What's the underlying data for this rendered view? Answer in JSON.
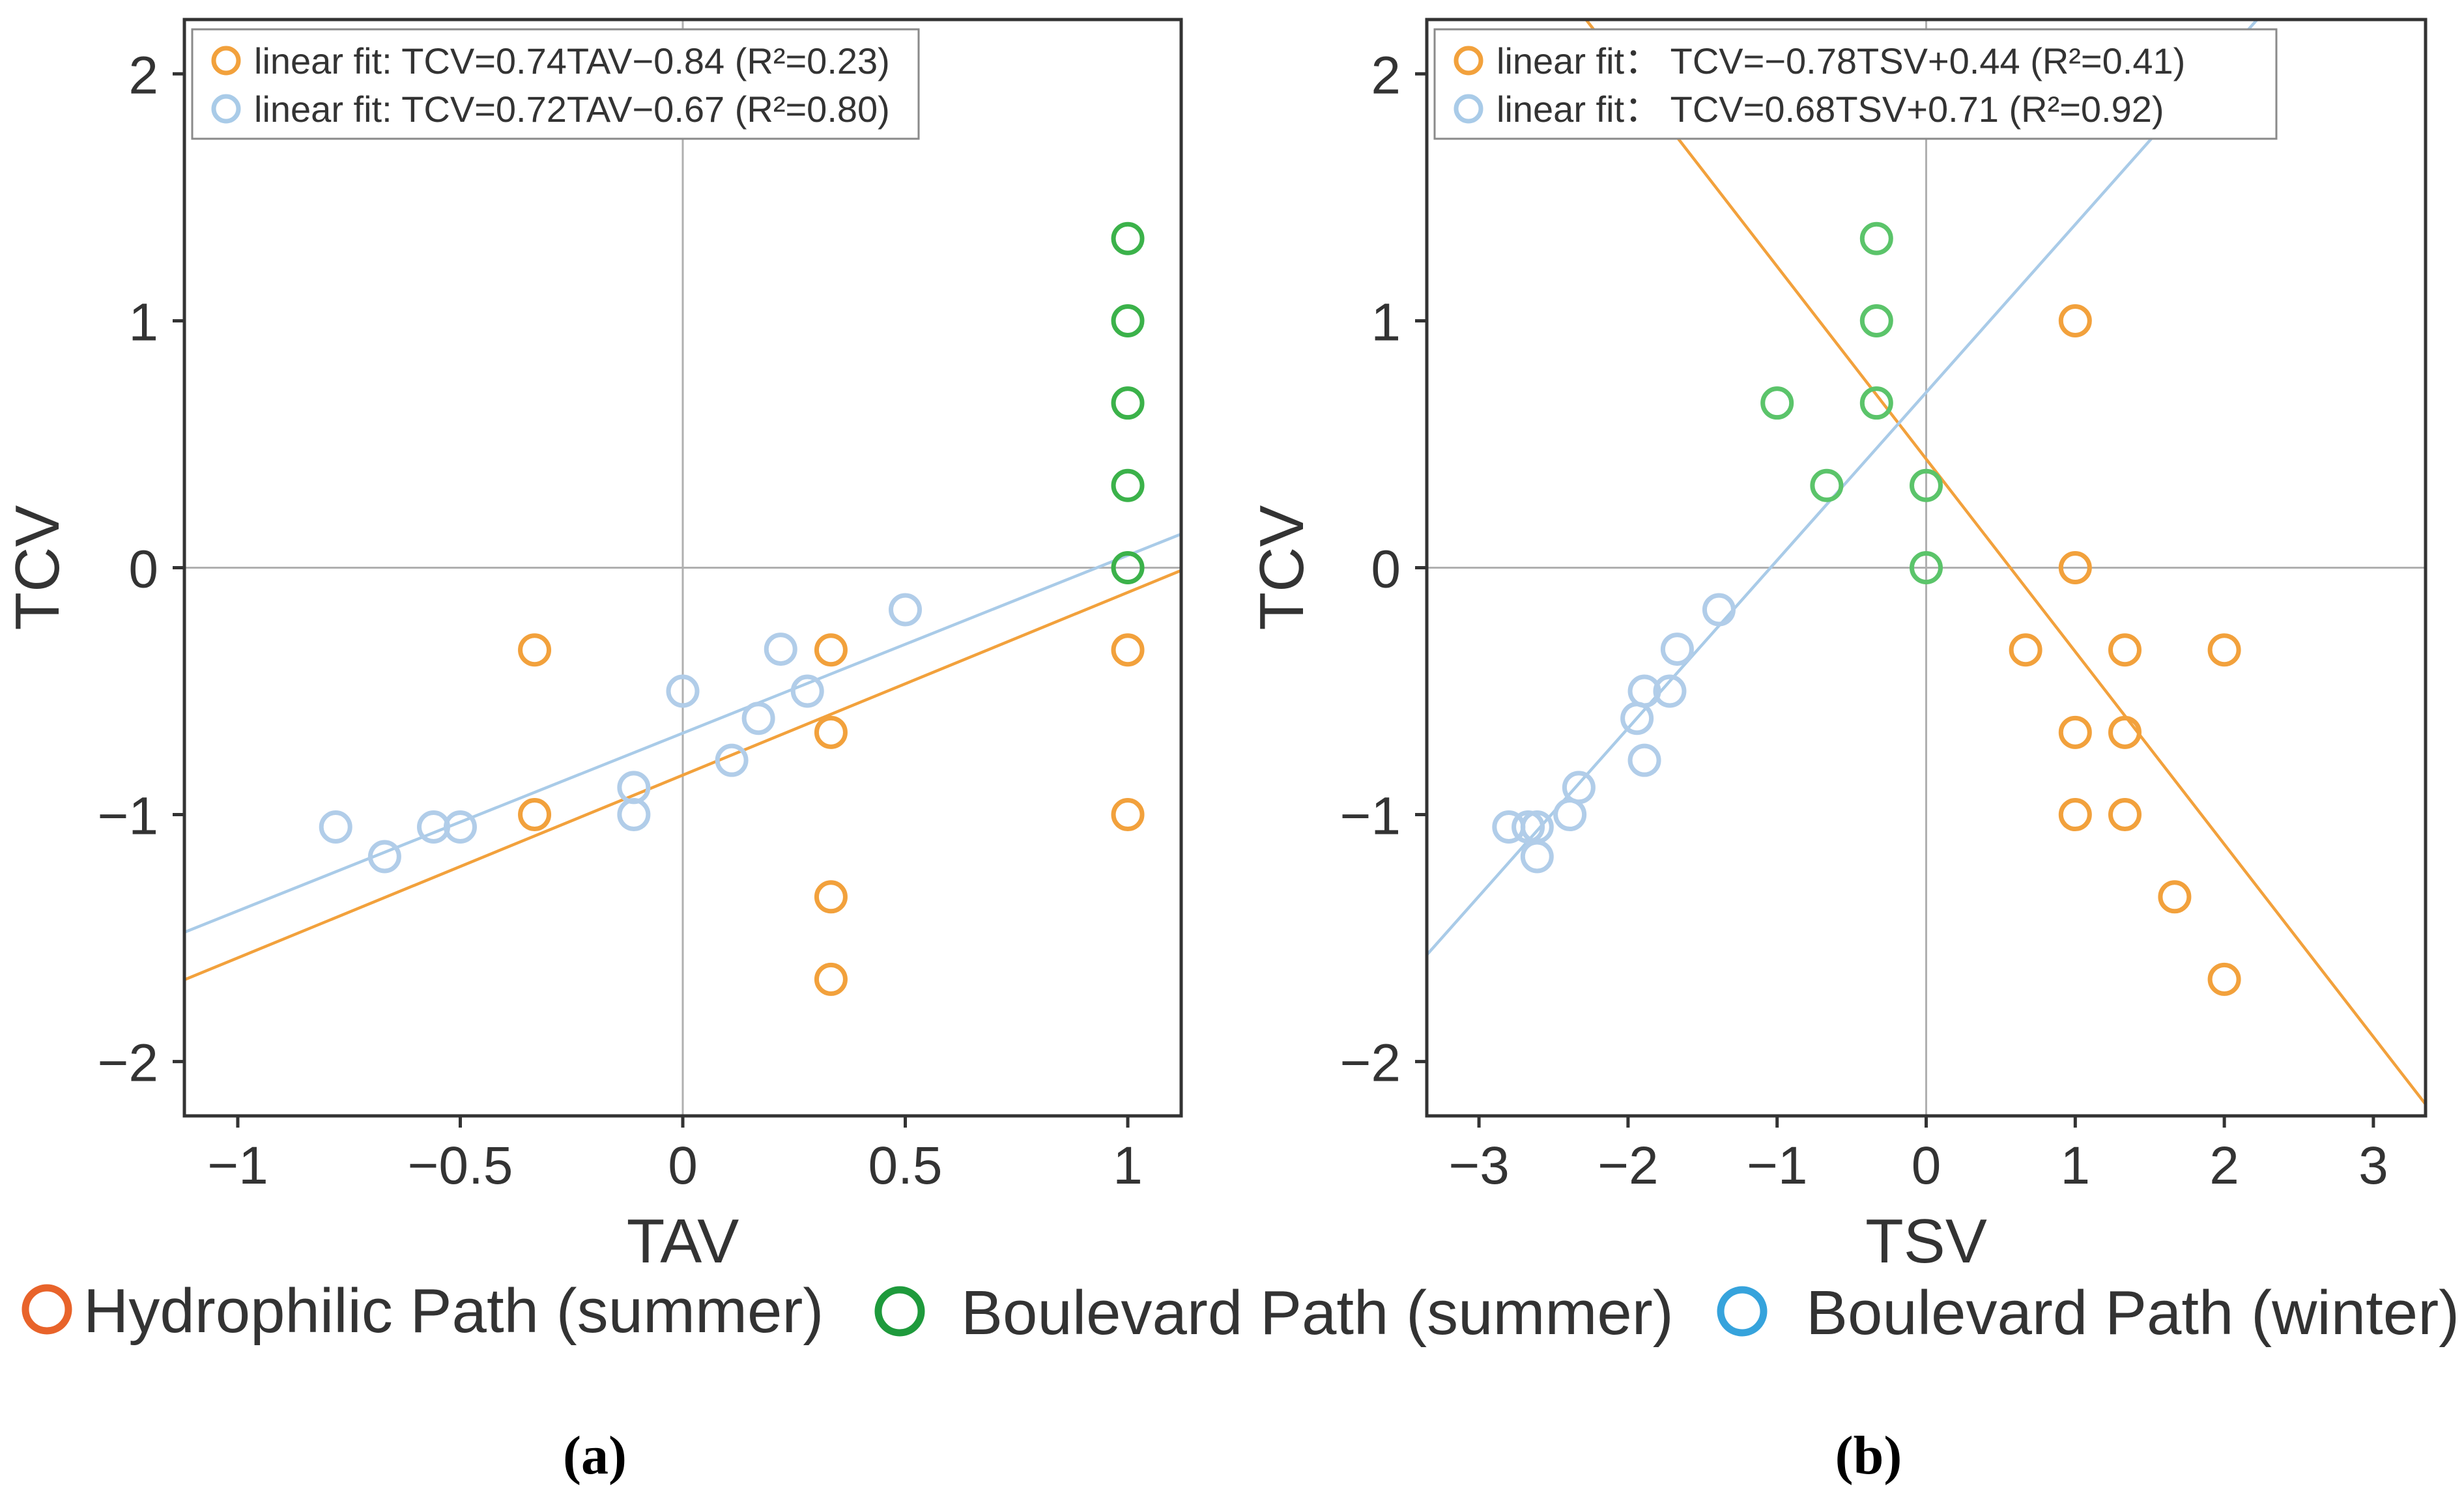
{
  "chart_data": [
    {
      "type": "scatter",
      "panel_label": "(a)",
      "xlabel": "TAV",
      "ylabel": "TCV",
      "xlim": [
        -1.12,
        1.12
      ],
      "ylim": [
        -2.22,
        2.22
      ],
      "xticks": [
        -1,
        -0.5,
        0,
        0.5,
        1
      ],
      "xtick_labels": [
        "−1",
        "−0.5",
        "0",
        "0.5",
        "1"
      ],
      "yticks": [
        -2,
        -1,
        0,
        1,
        2
      ],
      "ytick_labels": [
        "−2",
        "−1",
        "0",
        "1",
        "2"
      ],
      "reference_lines": {
        "x": 0,
        "y": 0
      },
      "legend_position": "top-left",
      "fits": [
        {
          "label": "linear fit: TCV=0.74TAV−0.84 (R²=0.23)",
          "slope": 0.74,
          "intercept": -0.84,
          "color": "#f2a13c"
        },
        {
          "label": "linear fit: TCV=0.72TAV−0.67 (R²=0.80)",
          "slope": 0.72,
          "intercept": -0.67,
          "color": "#a9cbe8"
        }
      ],
      "series": [
        {
          "name": "Hydrophilic Path (summer)",
          "color": "#f2a13c",
          "points": [
            [
              -0.333,
              -0.333
            ],
            [
              -0.333,
              -1.0
            ],
            [
              0.333,
              -0.333
            ],
            [
              0.333,
              -0.667
            ],
            [
              0.333,
              -1.333
            ],
            [
              0.333,
              -1.667
            ],
            [
              1.0,
              -0.333
            ],
            [
              1.0,
              -1.0
            ]
          ]
        },
        {
          "name": "Boulevard Path (summer)",
          "color": "#3bb24a",
          "points": [
            [
              1.0,
              1.333
            ],
            [
              1.0,
              1.0
            ],
            [
              1.0,
              0.667
            ],
            [
              1.0,
              0.333
            ],
            [
              1.0,
              0.0
            ]
          ]
        },
        {
          "name": "Boulevard Path (winter)",
          "color": "#b1cde9",
          "points": [
            [
              -0.78,
              -1.05
            ],
            [
              -0.67,
              -1.17
            ],
            [
              -0.56,
              -1.05
            ],
            [
              -0.5,
              -1.05
            ],
            [
              -0.11,
              -0.89
            ],
            [
              -0.11,
              -1.0
            ],
            [
              0.0,
              -0.5
            ],
            [
              0.11,
              -0.78
            ],
            [
              0.17,
              -0.61
            ],
            [
              0.22,
              -0.33
            ],
            [
              0.28,
              -0.5
            ],
            [
              0.5,
              -0.17
            ]
          ]
        }
      ]
    },
    {
      "type": "scatter",
      "panel_label": "(b)",
      "xlabel": "TSV",
      "ylabel": "TCV",
      "xlim": [
        -3.35,
        3.35
      ],
      "ylim": [
        -2.22,
        2.22
      ],
      "xticks": [
        -3,
        -2,
        -1,
        0,
        1,
        2,
        3
      ],
      "xtick_labels": [
        "−3",
        "−2",
        "−1",
        "0",
        "1",
        "2",
        "3"
      ],
      "yticks": [
        -2,
        -1,
        0,
        1,
        2
      ],
      "ytick_labels": [
        "−2",
        "−1",
        "0",
        "1",
        "2"
      ],
      "reference_lines": {
        "x": 0,
        "y": 0
      },
      "legend_position": "top-left",
      "fits": [
        {
          "label": "linear fit： TCV=−0.78TSV+0.44 (R²=0.41)",
          "slope": -0.78,
          "intercept": 0.44,
          "color": "#f2a13c"
        },
        {
          "label": "linear fit： TCV=0.68TSV+0.71   (R²=0.92)",
          "slope": 0.68,
          "intercept": 0.71,
          "color": "#a9cbe8"
        }
      ],
      "series": [
        {
          "name": "Hydrophilic Path (summer)",
          "color": "#f2a13c",
          "points": [
            [
              1.0,
              1.0
            ],
            [
              1.0,
              0.0
            ],
            [
              0.667,
              -0.333
            ],
            [
              1.333,
              -0.333
            ],
            [
              2.0,
              -0.333
            ],
            [
              1.0,
              -0.667
            ],
            [
              1.333,
              -0.667
            ],
            [
              1.0,
              -1.0
            ],
            [
              1.333,
              -1.0
            ],
            [
              1.667,
              -1.333
            ],
            [
              2.0,
              -1.667
            ]
          ]
        },
        {
          "name": "Boulevard Path (summer)",
          "color": "#5bc46a",
          "points": [
            [
              -0.333,
              1.333
            ],
            [
              -0.333,
              1.0
            ],
            [
              -1.0,
              0.667
            ],
            [
              -0.333,
              0.667
            ],
            [
              -0.667,
              0.333
            ],
            [
              0.0,
              0.333
            ],
            [
              0.0,
              0.0
            ]
          ]
        },
        {
          "name": "Boulevard Path (winter)",
          "color": "#b1cde9",
          "points": [
            [
              -2.8,
              -1.05
            ],
            [
              -2.67,
              -1.05
            ],
            [
              -2.61,
              -1.05
            ],
            [
              -2.61,
              -1.17
            ],
            [
              -2.39,
              -1.0
            ],
            [
              -2.33,
              -0.89
            ],
            [
              -1.94,
              -0.61
            ],
            [
              -1.89,
              -0.5
            ],
            [
              -1.89,
              -0.78
            ],
            [
              -1.72,
              -0.5
            ],
            [
              -1.67,
              -0.33
            ],
            [
              -1.39,
              -0.17
            ]
          ]
        }
      ]
    }
  ],
  "legend": {
    "items": [
      {
        "label": "Hydrophilic Path (summer)",
        "color": "#e8632a"
      },
      {
        "label": "Boulevard Path (summer)",
        "color": "#1e9a3c"
      },
      {
        "label": "Boulevard Path (winter)",
        "color": "#36a3dc"
      }
    ]
  }
}
